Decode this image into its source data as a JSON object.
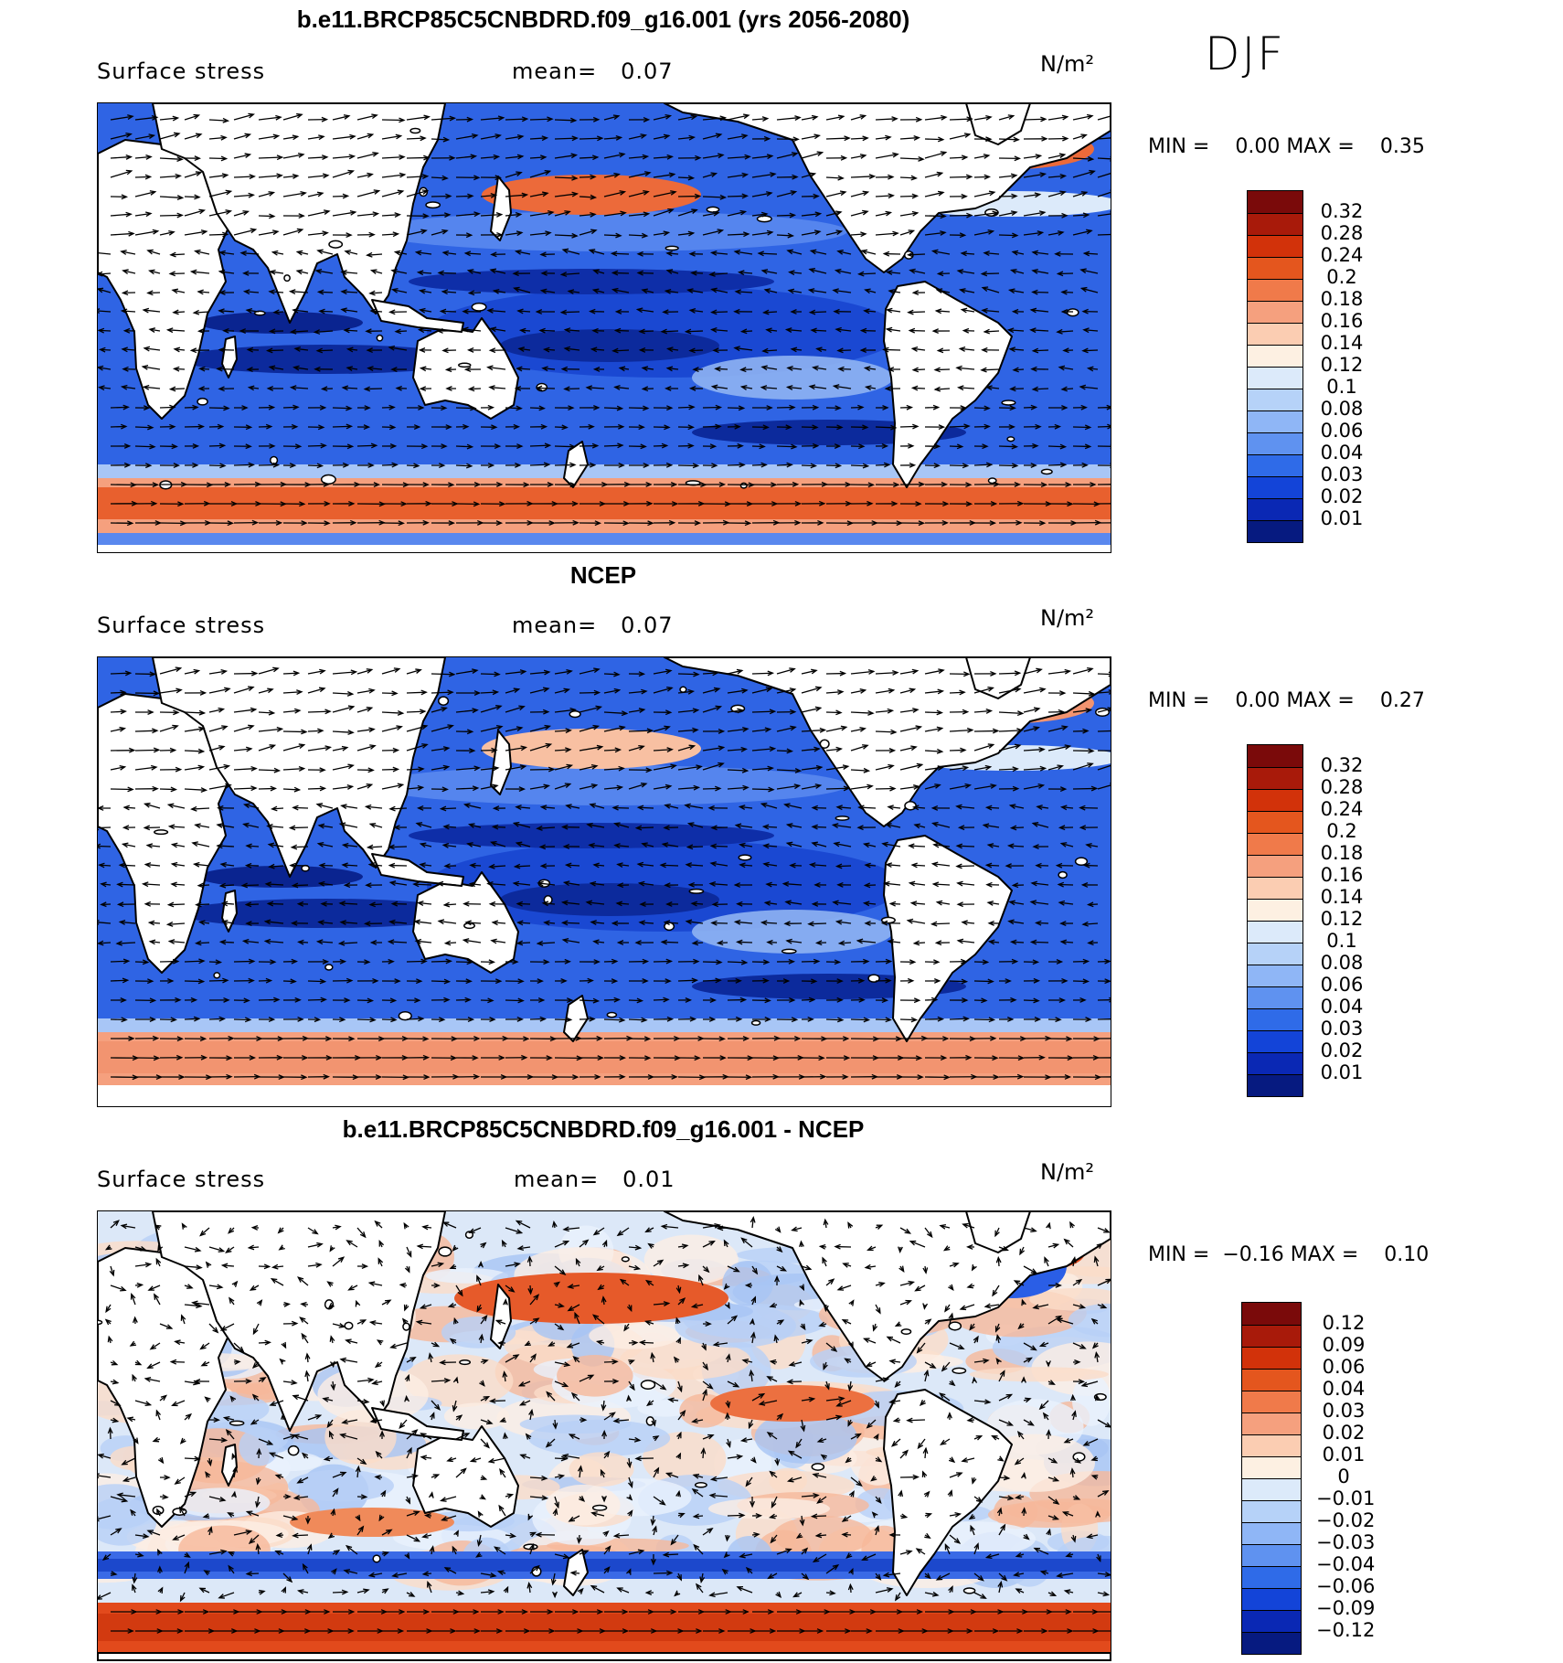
{
  "season": "DJF",
  "panels": [
    {
      "title": "b.e11.BRCP85C5CNBDRD.f09_g16.001 (yrs 2056-2080)",
      "variable": "Surface stress",
      "mean_label": "mean=",
      "mean_value": "0.07",
      "units": "N/m²",
      "min_label": "MIN =",
      "min_value": "0.00",
      "max_label": "MAX =",
      "max_value": "0.35",
      "colorbar_levels": [
        "0.32",
        "0.28",
        "0.24",
        "0.2",
        "0.18",
        "0.16",
        "0.14",
        "0.12",
        "0.1",
        "0.08",
        "0.06",
        "0.04",
        "0.03",
        "0.02",
        "0.01"
      ]
    },
    {
      "title": "NCEP",
      "variable": "Surface stress",
      "mean_label": "mean=",
      "mean_value": "0.07",
      "units": "N/m²",
      "min_label": "MIN =",
      "min_value": "0.00",
      "max_label": "MAX =",
      "max_value": "0.27",
      "colorbar_levels": [
        "0.32",
        "0.28",
        "0.24",
        "0.2",
        "0.18",
        "0.16",
        "0.14",
        "0.12",
        "0.1",
        "0.08",
        "0.06",
        "0.04",
        "0.03",
        "0.02",
        "0.01"
      ]
    },
    {
      "title": "b.e11.BRCP85C5CNBDRD.f09_g16.001 - NCEP",
      "variable": "Surface stress",
      "mean_label": "mean=",
      "mean_value": "0.01",
      "units": "N/m²",
      "min_label": "MIN =",
      "min_value": "−0.16",
      "max_label": "MAX =",
      "max_value": "0.10",
      "colorbar_levels": [
        "0.12",
        "0.09",
        "0.06",
        "0.04",
        "0.03",
        "0.02",
        "0.01",
        "0",
        "−0.01",
        "−0.02",
        "−0.03",
        "−0.04",
        "−0.06",
        "−0.09",
        "−0.12"
      ]
    }
  ],
  "colors": {
    "bar16": [
      "#7a0a0a",
      "#a81a0a",
      "#d2320a",
      "#e4561e",
      "#f07a4a",
      "#f5a07e",
      "#fbcdb2",
      "#fdf0e2",
      "#dceafa",
      "#b6d2f8",
      "#8fb6f6",
      "#5f92f0",
      "#2f6be8",
      "#1344d8",
      "#0a28b4",
      "#061a80"
    ],
    "ocean_deep": "#0a2aa8",
    "ocean_mid": "#2a5ee6",
    "ocean_light": "#9cbff6",
    "warm": "#e8663a"
  },
  "map_data": {
    "type": "global-vector-field",
    "domain": "Global ocean surface wind stress, DJF",
    "description_tags": [
      "surface-stress-contours",
      "wind-stress-vectors",
      "coastlines"
    ]
  }
}
